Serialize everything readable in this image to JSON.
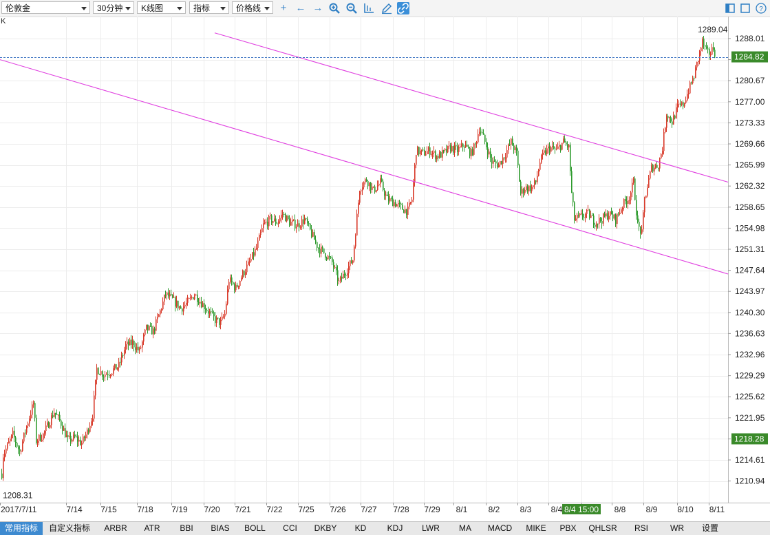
{
  "toolbar": {
    "instrument": "伦敦金",
    "period": "30分钟",
    "chart_kind": "K线图",
    "indicator": "指标",
    "price_line": "价格线",
    "colors": {
      "accent": "#3b8fd8"
    }
  },
  "k_label": "K",
  "price_axis": {
    "ticks": [
      "1288.01",
      "1284.34",
      "1280.67",
      "1277.00",
      "1273.33",
      "1269.66",
      "1265.99",
      "1262.32",
      "1258.65",
      "1254.98",
      "1251.31",
      "1247.64",
      "1243.97",
      "1240.30",
      "1236.63",
      "1232.96",
      "1229.29",
      "1225.62",
      "1221.95",
      "1218.28",
      "1214.61",
      "1210.94"
    ],
    "current_price": "1284.82",
    "highlight_price": "1218.28",
    "high_label": "1289.04",
    "low_label": "1208.31"
  },
  "date_axis": {
    "labels": [
      "2017/7/11",
      "7/14",
      "7/15",
      "7/18",
      "7/19",
      "7/20",
      "7/21",
      "7/22",
      "7/25",
      "7/26",
      "7/27",
      "7/28",
      "7/29",
      "8/1",
      "8/2",
      "8/3",
      "8/4",
      "8/4 15:00",
      "8/8",
      "8/9",
      "8/10",
      "8/11"
    ]
  },
  "bottom_tabs": [
    "常用指标",
    "自定义指标",
    "ARBR",
    "ATR",
    "BBI",
    "BIAS",
    "BOLL",
    "CCI",
    "DKBY",
    "KD",
    "KDJ",
    "LWR",
    "MA",
    "MACD",
    "MIKE",
    "PBX",
    "QHLSR",
    "RSI",
    "WR",
    "设置"
  ],
  "chart_data": {
    "type": "candlestick",
    "ylim": [
      1208.31,
      1289.04
    ],
    "colors": {
      "up": "#d83a2a",
      "down": "#2e9b2e",
      "trendline": "#e040e0",
      "price_tag": "#3a8a2a"
    },
    "close_path": [
      [
        0,
        1209.0
      ],
      [
        4,
        1215.5
      ],
      [
        18,
        1219.0
      ],
      [
        28,
        1216.0
      ],
      [
        38,
        1220.5
      ],
      [
        48,
        1224.5
      ],
      [
        52,
        1218.0
      ],
      [
        62,
        1219.0
      ],
      [
        70,
        1221.0
      ],
      [
        78,
        1223.0
      ],
      [
        88,
        1221.0
      ],
      [
        98,
        1218.0
      ],
      [
        108,
        1218.5
      ],
      [
        118,
        1217.5
      ],
      [
        126,
        1219.5
      ],
      [
        134,
        1222.5
      ],
      [
        140,
        1230.5
      ],
      [
        150,
        1229.5
      ],
      [
        160,
        1230.0
      ],
      [
        172,
        1231.0
      ],
      [
        182,
        1234.5
      ],
      [
        192,
        1235.0
      ],
      [
        202,
        1233.5
      ],
      [
        212,
        1237.5
      ],
      [
        222,
        1237.0
      ],
      [
        232,
        1240.5
      ],
      [
        240,
        1243.5
      ],
      [
        250,
        1242.5
      ],
      [
        262,
        1241.0
      ],
      [
        272,
        1242.0
      ],
      [
        282,
        1243.5
      ],
      [
        292,
        1242.0
      ],
      [
        302,
        1240.5
      ],
      [
        312,
        1239.0
      ],
      [
        320,
        1238.5
      ],
      [
        326,
        1240.0
      ],
      [
        332,
        1246.0
      ],
      [
        342,
        1244.5
      ],
      [
        352,
        1247.0
      ],
      [
        362,
        1249.0
      ],
      [
        372,
        1251.5
      ],
      [
        382,
        1255.5
      ],
      [
        392,
        1256.5
      ],
      [
        402,
        1256.0
      ],
      [
        410,
        1257.5
      ],
      [
        420,
        1256.0
      ],
      [
        432,
        1255.5
      ],
      [
        442,
        1256.5
      ],
      [
        452,
        1254.0
      ],
      [
        462,
        1251.5
      ],
      [
        472,
        1250.5
      ],
      [
        482,
        1249.0
      ],
      [
        492,
        1245.5
      ],
      [
        502,
        1247.5
      ],
      [
        512,
        1249.5
      ],
      [
        518,
        1257.0
      ],
      [
        522,
        1262.0
      ],
      [
        532,
        1263.5
      ],
      [
        542,
        1261.5
      ],
      [
        552,
        1263.0
      ],
      [
        562,
        1260.0
      ],
      [
        572,
        1259.5
      ],
      [
        582,
        1258.5
      ],
      [
        592,
        1258.0
      ],
      [
        598,
        1260.0
      ],
      [
        604,
        1268.5
      ],
      [
        614,
        1268.0
      ],
      [
        624,
        1268.5
      ],
      [
        634,
        1267.5
      ],
      [
        644,
        1268.0
      ],
      [
        654,
        1269.0
      ],
      [
        664,
        1268.5
      ],
      [
        674,
        1269.5
      ],
      [
        684,
        1268.0
      ],
      [
        690,
        1269.5
      ],
      [
        696,
        1272.5
      ],
      [
        704,
        1270.0
      ],
      [
        714,
        1266.5
      ],
      [
        724,
        1266.0
      ],
      [
        734,
        1268.0
      ],
      [
        742,
        1270.0
      ],
      [
        750,
        1268.0
      ],
      [
        756,
        1261.0
      ],
      [
        762,
        1262.0
      ],
      [
        772,
        1262.0
      ],
      [
        778,
        1263.0
      ],
      [
        784,
        1266.5
      ],
      [
        790,
        1268.0
      ],
      [
        798,
        1269.0
      ],
      [
        808,
        1268.5
      ],
      [
        818,
        1270.0
      ],
      [
        826,
        1269.0
      ],
      [
        830,
        1261.0
      ],
      [
        834,
        1256.5
      ],
      [
        844,
        1257.0
      ],
      [
        854,
        1257.5
      ],
      [
        864,
        1256.0
      ],
      [
        874,
        1256.5
      ],
      [
        884,
        1257.5
      ],
      [
        894,
        1256.5
      ],
      [
        904,
        1259.0
      ],
      [
        914,
        1260.5
      ],
      [
        920,
        1263.0
      ],
      [
        926,
        1255.5
      ],
      [
        932,
        1254.0
      ],
      [
        936,
        1260.0
      ],
      [
        946,
        1265.5
      ],
      [
        956,
        1266.0
      ],
      [
        962,
        1269.0
      ],
      [
        968,
        1275.0
      ],
      [
        976,
        1273.5
      ],
      [
        984,
        1276.0
      ],
      [
        992,
        1276.5
      ],
      [
        1000,
        1279.0
      ],
      [
        1008,
        1281.5
      ],
      [
        1014,
        1284.5
      ],
      [
        1020,
        1287.5
      ],
      [
        1026,
        1285.5
      ],
      [
        1032,
        1285.5
      ],
      [
        1036,
        1286.5
      ],
      [
        1040,
        1284.8
      ]
    ],
    "trendlines": [
      {
        "from": [
          0,
          1284.34
        ],
        "to": [
          1058,
          1247.0
        ]
      },
      {
        "from": [
          312,
          1289.0
        ],
        "to": [
          1058,
          1263.0
        ]
      }
    ]
  }
}
